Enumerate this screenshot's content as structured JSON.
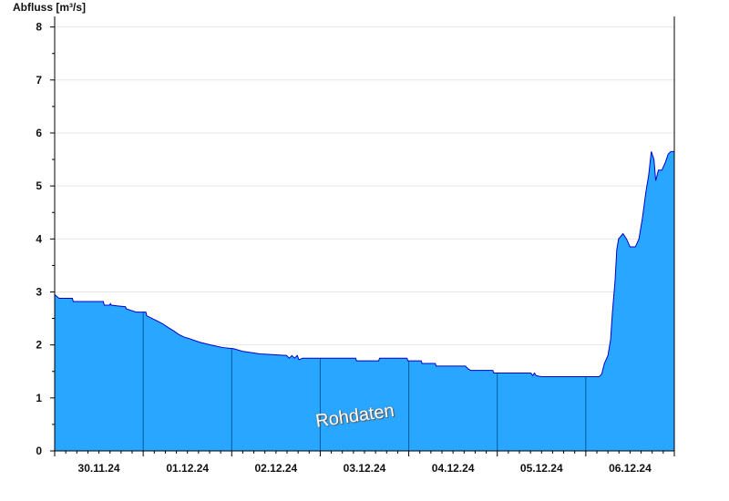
{
  "chart_data": {
    "type": "area",
    "ylabel": "Abfluss [m³/s]",
    "watermark": "Rohdaten",
    "ylim": [
      0,
      8.2
    ],
    "yticks": [
      0,
      1,
      2,
      3,
      4,
      5,
      6,
      7,
      8
    ],
    "x_tick_labels": [
      "30.11.24",
      "01.12.24",
      "02.12.24",
      "03.12.24",
      "04.12.24",
      "05.12.24",
      "06.12.24"
    ],
    "x_range_days": [
      0,
      7
    ],
    "grid": "horizontal",
    "colors": {
      "fill": "#29a6ff",
      "line": "#0000cc",
      "day_line": "#005a9c",
      "grid": "#e6e6e6"
    },
    "series": [
      {
        "values": [
          [
            0.0,
            2.95
          ],
          [
            0.05,
            2.88
          ],
          [
            0.2,
            2.88
          ],
          [
            0.21,
            2.82
          ],
          [
            0.55,
            2.82
          ],
          [
            0.56,
            2.75
          ],
          [
            0.62,
            2.75
          ],
          [
            0.63,
            2.78
          ],
          [
            0.64,
            2.75
          ],
          [
            0.8,
            2.72
          ],
          [
            0.81,
            2.68
          ],
          [
            0.92,
            2.62
          ],
          [
            1.03,
            2.62
          ],
          [
            1.04,
            2.55
          ],
          [
            1.1,
            2.5
          ],
          [
            1.16,
            2.45
          ],
          [
            1.22,
            2.4
          ],
          [
            1.28,
            2.33
          ],
          [
            1.34,
            2.27
          ],
          [
            1.4,
            2.2
          ],
          [
            1.46,
            2.15
          ],
          [
            1.52,
            2.12
          ],
          [
            1.64,
            2.05
          ],
          [
            1.76,
            2.0
          ],
          [
            1.9,
            1.95
          ],
          [
            2.02,
            1.93
          ],
          [
            2.12,
            1.88
          ],
          [
            2.32,
            1.83
          ],
          [
            2.62,
            1.8
          ],
          [
            2.65,
            1.75
          ],
          [
            2.68,
            1.8
          ],
          [
            2.71,
            1.75
          ],
          [
            2.74,
            1.8
          ],
          [
            2.76,
            1.72
          ],
          [
            2.8,
            1.75
          ],
          [
            3.4,
            1.75
          ],
          [
            3.41,
            1.7
          ],
          [
            3.66,
            1.7
          ],
          [
            3.67,
            1.75
          ],
          [
            3.98,
            1.75
          ],
          [
            3.99,
            1.7
          ],
          [
            4.14,
            1.7
          ],
          [
            4.15,
            1.65
          ],
          [
            4.3,
            1.65
          ],
          [
            4.31,
            1.6
          ],
          [
            4.64,
            1.6
          ],
          [
            4.67,
            1.55
          ],
          [
            4.7,
            1.52
          ],
          [
            4.95,
            1.52
          ],
          [
            4.96,
            1.47
          ],
          [
            5.38,
            1.47
          ],
          [
            5.4,
            1.42
          ],
          [
            5.42,
            1.47
          ],
          [
            5.44,
            1.42
          ],
          [
            5.5,
            1.4
          ],
          [
            6.15,
            1.4
          ],
          [
            6.18,
            1.45
          ],
          [
            6.21,
            1.65
          ],
          [
            6.25,
            1.8
          ],
          [
            6.28,
            2.1
          ],
          [
            6.3,
            2.6
          ],
          [
            6.33,
            3.2
          ],
          [
            6.35,
            3.8
          ],
          [
            6.37,
            4.0
          ],
          [
            6.42,
            4.1
          ],
          [
            6.46,
            4.0
          ],
          [
            6.5,
            3.85
          ],
          [
            6.56,
            3.85
          ],
          [
            6.6,
            4.0
          ],
          [
            6.64,
            4.4
          ],
          [
            6.68,
            4.9
          ],
          [
            6.71,
            5.2
          ],
          [
            6.74,
            5.65
          ],
          [
            6.77,
            5.5
          ],
          [
            6.79,
            5.1
          ],
          [
            6.82,
            5.3
          ],
          [
            6.86,
            5.3
          ],
          [
            6.9,
            5.45
          ],
          [
            6.93,
            5.6
          ],
          [
            6.96,
            5.65
          ],
          [
            7.0,
            5.65
          ]
        ]
      }
    ]
  }
}
